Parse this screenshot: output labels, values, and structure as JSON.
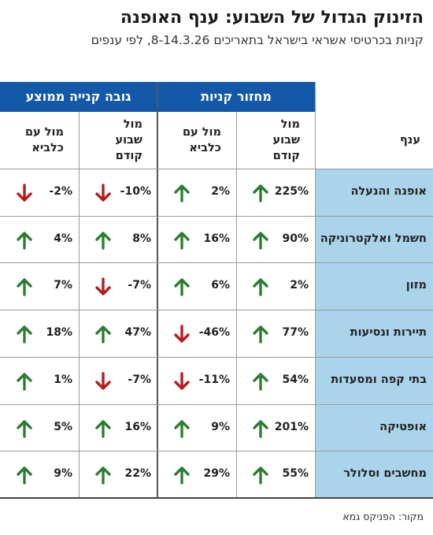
{
  "title": "הזינוק הגדול של השבוע: ענף האופנה",
  "subtitle": "קניות בכרטיסי אשראי בישראל בתאריכים 8-14.3.26, לפי ענפים",
  "source": "מקור: הפניקס גמא",
  "colors": {
    "header_bg": "#1458a8",
    "category_bg": "#a9d4ea",
    "up": "#2e7d32",
    "down": "#b71c1c"
  },
  "chart_data": {
    "type": "table",
    "groups": [
      {
        "label": "מחזור קניות",
        "columns": [
          "מול שבוע קודם",
          "מול עם כלביא"
        ]
      },
      {
        "label": "גובה קנייה ממוצע",
        "columns": [
          "מול שבוע קודם",
          "מול עם כלביא"
        ]
      }
    ],
    "category_header": "ענף",
    "column_headers": [
      "מול שבוע קודם",
      "מול עם כלביא",
      "מול שבוע קודם",
      "מול עם כלביא"
    ],
    "rows": [
      {
        "category": "אופנה והנעלה",
        "labels": [
          "225%",
          "2%",
          "-10%",
          "-2%"
        ],
        "values": [
          225,
          2,
          -10,
          -2
        ],
        "directions": [
          "up",
          "up",
          "down",
          "down"
        ]
      },
      {
        "category": "חשמל ואלקטרוניקה",
        "labels": [
          "90%",
          "16%",
          "8%",
          "4%"
        ],
        "values": [
          90,
          16,
          8,
          4
        ],
        "directions": [
          "up",
          "up",
          "up",
          "up"
        ]
      },
      {
        "category": "מזון",
        "labels": [
          "2%",
          "6%",
          "-7%",
          "7%"
        ],
        "values": [
          2,
          6,
          -7,
          7
        ],
        "directions": [
          "up",
          "up",
          "down",
          "up"
        ]
      },
      {
        "category": "תיירות ונסיעות",
        "labels": [
          "77%",
          "-46%",
          "47%",
          "18%"
        ],
        "values": [
          77,
          -46,
          47,
          18
        ],
        "directions": [
          "up",
          "down",
          "up",
          "up"
        ]
      },
      {
        "category": "בתי קפה ומסעדות",
        "labels": [
          "54%",
          "-11%",
          "-7%",
          "1%"
        ],
        "values": [
          54,
          -11,
          -7,
          1
        ],
        "directions": [
          "up",
          "down",
          "down",
          "up"
        ]
      },
      {
        "category": "אופטיקה",
        "labels": [
          "201%",
          "9%",
          "16%",
          "5%"
        ],
        "values": [
          201,
          9,
          16,
          5
        ],
        "directions": [
          "up",
          "up",
          "up",
          "up"
        ]
      },
      {
        "category": "מחשבים וסלולר",
        "labels": [
          "55%",
          "29%",
          "22%",
          "9%"
        ],
        "values": [
          55,
          29,
          22,
          9
        ],
        "directions": [
          "up",
          "up",
          "up",
          "up"
        ]
      }
    ]
  }
}
